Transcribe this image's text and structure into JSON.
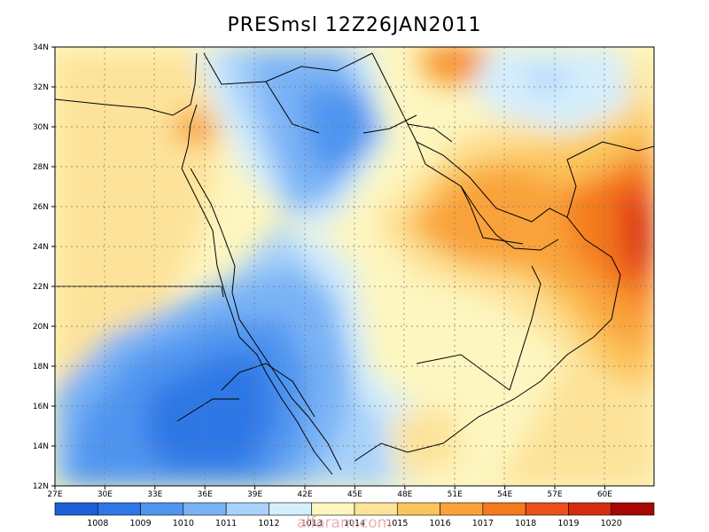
{
  "title": "PRESmsl 12Z26JAN2011",
  "lon_labels": [
    "27E",
    "30E",
    "33E",
    "36E",
    "39E",
    "42E",
    "45E",
    "48E",
    "51E",
    "54E",
    "57E",
    "60E"
  ],
  "lat_labels": [
    "12N",
    "14N",
    "16N",
    "18N",
    "20N",
    "22N",
    "24N",
    "26N",
    "28N",
    "30N",
    "32N",
    "34N"
  ],
  "colorbar": {
    "colors": [
      "#1c5fd6",
      "#2d78e6",
      "#4f95f0",
      "#7ab3f5",
      "#a8d2fa",
      "#d5eefc",
      "#fdf6c0",
      "#fde39a",
      "#fcc55c",
      "#f9a23a",
      "#f47a1e",
      "#e9501a",
      "#d62d10",
      "#a80606"
    ],
    "labels": [
      "1008",
      "1009",
      "1010",
      "1011",
      "1012",
      "1013",
      "1014",
      "1015",
      "1016",
      "1017",
      "1018",
      "1019",
      "1020"
    ]
  },
  "watermark": "alfaram.com"
}
